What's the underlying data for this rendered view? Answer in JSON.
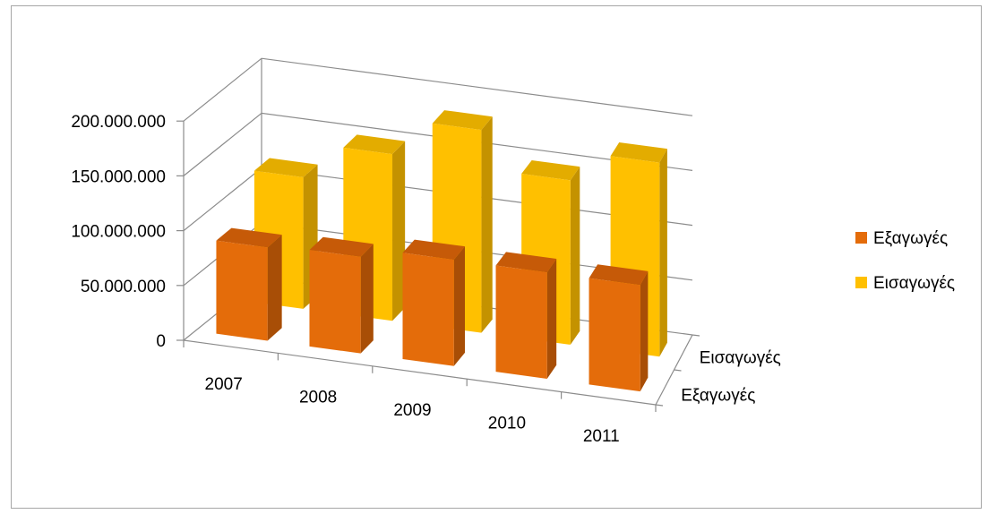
{
  "chart_data": {
    "type": "bar",
    "categories": [
      "2007",
      "2008",
      "2009",
      "2010",
      "2011"
    ],
    "series": [
      {
        "name": "Εξαγωγές",
        "values": [
          85000000,
          88000000,
          97000000,
          97000000,
          97000000
        ]
      },
      {
        "name": "Εισαγωγές",
        "values": [
          120000000,
          152000000,
          185000000,
          150000000,
          177000000
        ]
      }
    ],
    "depth_labels": [
      "Εξαγωγές",
      "Εισαγωγές"
    ],
    "y_ticks": [
      0,
      50000000,
      100000000,
      150000000,
      200000000
    ],
    "y_tick_labels": [
      "0",
      "50.000.000",
      "100.000.000",
      "150.000.000",
      "200.000.000"
    ],
    "ylim": [
      0,
      200000000
    ],
    "title": "",
    "xlabel": "",
    "ylabel": "",
    "grid": true,
    "legend_position": "right",
    "colors": {
      "Εξαγωγές": {
        "front": "#E46C0A",
        "side": "#A84E06",
        "top": "#C65A08"
      },
      "Εισαγωγές": {
        "front": "#FFC000",
        "side": "#C49200",
        "top": "#E3AC00"
      }
    }
  }
}
